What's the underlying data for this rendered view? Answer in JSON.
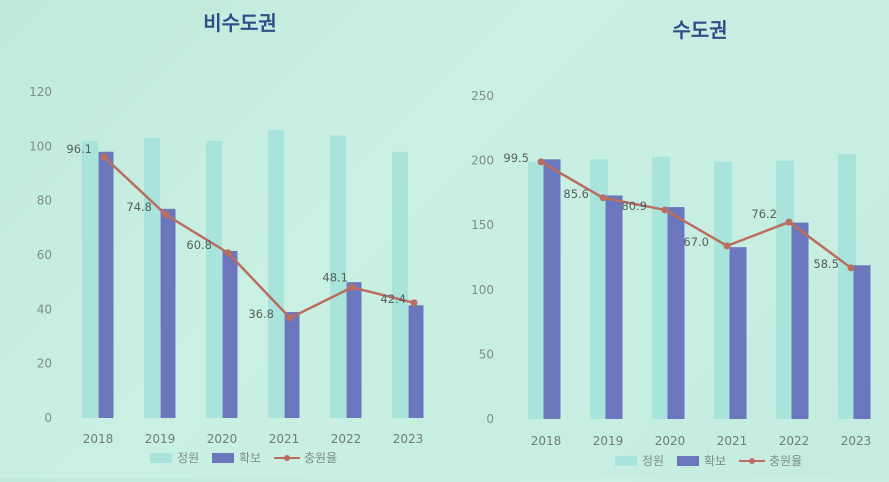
{
  "legend": {
    "capacity": "정원",
    "secured": "확보",
    "rate": "충원율"
  },
  "colors": {
    "capacity": "#a8e4dc",
    "secured": "#6b76bd",
    "rate": "#bb6e60"
  },
  "chart_data": [
    {
      "type": "bar",
      "title": "비수도권",
      "categories": [
        "2018",
        "2019",
        "2020",
        "2021",
        "2022",
        "2023"
      ],
      "series": [
        {
          "name": "정원",
          "values": [
            102,
            103,
            102,
            106,
            104,
            98
          ]
        },
        {
          "name": "확보",
          "values": [
            98,
            77,
            61.5,
            39,
            50,
            41.5
          ]
        },
        {
          "name": "충원율",
          "values": [
            96.1,
            74.8,
            60.8,
            36.8,
            48.1,
            42.4
          ]
        }
      ],
      "rate_labels": [
        "96.1",
        "74.8",
        "60.8",
        "36.8",
        "48.1",
        "42.4"
      ],
      "ylim": [
        0,
        120
      ],
      "yticks": [
        "0",
        "20",
        "40",
        "60",
        "80",
        "100",
        "120"
      ]
    },
    {
      "type": "bar",
      "title": "수도권",
      "categories": [
        "2018",
        "2019",
        "2020",
        "2021",
        "2022",
        "2023"
      ],
      "series": [
        {
          "name": "정원",
          "values": [
            199,
            201,
            203,
            199,
            200,
            205
          ]
        },
        {
          "name": "확보",
          "values": [
            201,
            173,
            164,
            133,
            152,
            119
          ]
        },
        {
          "name": "충원율",
          "values": [
            99.5,
            85.6,
            80.9,
            67.0,
            76.2,
            58.5
          ]
        }
      ],
      "rate_labels": [
        "99.5",
        "85.6",
        "80.9",
        "67.0",
        "76.2",
        "58.5"
      ],
      "ylim": [
        0,
        250
      ],
      "yticks": [
        "0",
        "50",
        "100",
        "150",
        "200",
        "250"
      ]
    }
  ]
}
